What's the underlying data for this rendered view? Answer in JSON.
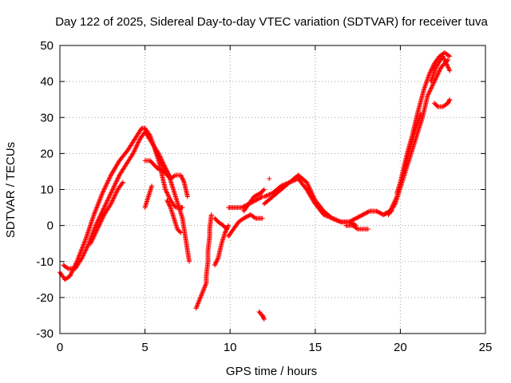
{
  "chart_data": {
    "type": "scatter",
    "title": "Day 122 of 2025, Sidereal Day-to-day VTEC variation (SDTVAR) for receiver tuva",
    "xlabel": "GPS time / hours",
    "ylabel": "SDTVAR / TECUs",
    "xlim": [
      0,
      25
    ],
    "ylim": [
      -30,
      50
    ],
    "grid": true,
    "xticks": [
      0,
      5,
      10,
      15,
      20,
      25
    ],
    "xtick_labels": [
      "0",
      "5",
      "10",
      "15",
      "20",
      "25"
    ],
    "yticks": [
      -30,
      -20,
      -10,
      0,
      10,
      20,
      30,
      40,
      50
    ],
    "ytick_labels": [
      "-30",
      "-20",
      "-10",
      "0",
      "10",
      "20",
      "30",
      "40",
      "50"
    ],
    "marker": "+",
    "series": [
      {
        "name": "track-a",
        "color": "#ff0000",
        "x": [
          0.0,
          0.3,
          0.6,
          1.0,
          1.5,
          2.0,
          2.5,
          3.0,
          3.5,
          4.0,
          4.4,
          4.8,
          5.0,
          5.3,
          5.6,
          6.0,
          6.4,
          6.8,
          7.0,
          7.2,
          7.4,
          7.6
        ],
        "y": [
          -13,
          -15,
          -14,
          -10,
          -4,
          3,
          9,
          14,
          18,
          21,
          24,
          27,
          27,
          25,
          21,
          17,
          14,
          8,
          5,
          2,
          -4,
          -10
        ]
      },
      {
        "name": "track-b",
        "color": "#ff0000",
        "x": [
          0.2,
          0.5,
          0.9,
          1.3,
          1.7,
          2.1,
          2.6,
          3.1,
          3.5,
          3.9,
          4.3,
          4.7,
          5.0,
          5.4,
          5.8,
          6.2,
          6.5
        ],
        "y": [
          -11,
          -12,
          -12,
          -9,
          -5,
          0,
          5,
          10,
          14,
          17,
          20,
          24,
          26,
          23,
          20,
          16,
          13
        ]
      },
      {
        "name": "track-c",
        "color": "#ff0000",
        "x": [
          1.8,
          2.2,
          2.6,
          3.0,
          3.4,
          3.7
        ],
        "y": [
          -5,
          -1,
          3,
          6,
          10,
          12
        ]
      },
      {
        "name": "track-d",
        "color": "#ff0000",
        "x": [
          5.0,
          5.3,
          5.7,
          6.1,
          6.5,
          6.8,
          7.1,
          7.3,
          7.5
        ],
        "y": [
          18,
          18,
          16,
          15,
          13,
          14,
          14,
          12,
          8
        ]
      },
      {
        "name": "track-e",
        "color": "#ff0000",
        "x": [
          5.6,
          5.8,
          6.0,
          6.2,
          6.5,
          6.8,
          7.1,
          7.2
        ],
        "y": [
          21,
          18,
          14,
          10,
          7,
          5,
          5,
          5
        ]
      },
      {
        "name": "track-f",
        "color": "#ff0000",
        "x": [
          5.0,
          5.2,
          5.4
        ],
        "y": [
          5,
          8,
          11
        ]
      },
      {
        "name": "track-g",
        "color": "#ff0000",
        "x": [
          6.3,
          6.5,
          6.7,
          6.9,
          7.1
        ],
        "y": [
          7,
          5,
          2,
          -1,
          -2
        ]
      },
      {
        "name": "scatter-h",
        "color": "#ff0000",
        "x": [
          8.0,
          8.6,
          8.6,
          8.65,
          8.7,
          8.7,
          8.75,
          8.8,
          8.8,
          8.85,
          8.9
        ],
        "y": [
          -23,
          -16,
          -14,
          -12,
          -10,
          -7,
          -5,
          -3,
          -1,
          1,
          3
        ]
      },
      {
        "name": "track-i",
        "color": "#ff0000",
        "x": [
          9.1,
          9.3,
          9.5,
          9.7,
          9.9
        ],
        "y": [
          -11,
          -9,
          -5,
          -2,
          0
        ]
      },
      {
        "name": "track-j",
        "color": "#ff0000",
        "x": [
          9.1,
          9.3,
          9.6,
          9.8
        ],
        "y": [
          2,
          1,
          0,
          -1
        ]
      },
      {
        "name": "track-k",
        "color": "#ff0000",
        "x": [
          9.9,
          10.2,
          10.5,
          10.8,
          11.2,
          11.5,
          11.9
        ],
        "y": [
          -3,
          -1,
          1,
          2,
          3,
          2,
          2
        ]
      },
      {
        "name": "track-l",
        "color": "#ff0000",
        "x": [
          9.9,
          10.3,
          10.7,
          11.1,
          11.5,
          11.9
        ],
        "y": [
          5,
          5,
          5,
          6,
          7,
          8
        ]
      },
      {
        "name": "track-m",
        "color": "#ff0000",
        "x": [
          10.8,
          11.1,
          11.4,
          11.8,
          12.0
        ],
        "y": [
          4,
          6,
          8,
          9,
          10
        ]
      },
      {
        "name": "track-n",
        "color": "#ff0000",
        "x": [
          11.7,
          11.9,
          12.0
        ],
        "y": [
          -24,
          -25,
          -26
        ]
      },
      {
        "name": "track-o",
        "color": "#ff0000",
        "x": [
          12.3
        ],
        "y": [
          13
        ]
      },
      {
        "name": "track-p",
        "color": "#ff0000",
        "x": [
          12.0,
          12.5,
          13.0,
          13.5,
          14.0,
          14.5,
          15.0,
          15.5,
          16.0,
          16.5,
          17.0,
          17.4,
          17.8,
          18.2,
          18.6,
          19.0,
          19.5
        ],
        "y": [
          6,
          8,
          10,
          12,
          13,
          10,
          6,
          3,
          2,
          1,
          1,
          2,
          3,
          4,
          4,
          3,
          4
        ]
      },
      {
        "name": "track-q",
        "color": "#ff0000",
        "x": [
          12.0,
          12.5,
          13.0,
          13.5,
          14.0,
          14.5,
          15.0,
          15.5,
          16.0,
          16.5,
          17.0,
          17.4
        ],
        "y": [
          8,
          9,
          11,
          12,
          14,
          12,
          7,
          4,
          2,
          1,
          1,
          0
        ]
      },
      {
        "name": "track-r",
        "color": "#ff0000",
        "x": [
          16.8,
          17.2,
          17.5,
          17.8,
          18.1
        ],
        "y": [
          0,
          0,
          -1,
          -1,
          -1
        ]
      },
      {
        "name": "track-s",
        "color": "#ff0000",
        "x": [
          19.0,
          19.4,
          19.8,
          20.1,
          20.4,
          20.7,
          21.0,
          21.4,
          21.7,
          22.0,
          22.3,
          22.6,
          22.9
        ],
        "y": [
          3,
          4,
          8,
          14,
          20,
          25,
          31,
          38,
          42,
          45,
          47,
          48,
          47
        ]
      },
      {
        "name": "track-t",
        "color": "#ff0000",
        "x": [
          19.3,
          19.7,
          20.1,
          20.5,
          20.9,
          21.3,
          21.6,
          22.0,
          22.4,
          22.8
        ],
        "y": [
          3,
          6,
          12,
          18,
          24,
          30,
          36,
          40,
          44,
          46
        ]
      },
      {
        "name": "track-u",
        "color": "#ff0000",
        "x": [
          19.8,
          20.2,
          20.6,
          20.9,
          21.2
        ],
        "y": [
          9,
          15,
          22,
          27,
          31
        ]
      },
      {
        "name": "track-v",
        "color": "#ff0000",
        "x": [
          22.0,
          22.2,
          22.5,
          22.8,
          22.9
        ],
        "y": [
          34,
          33,
          33,
          34,
          35
        ]
      },
      {
        "name": "track-w",
        "color": "#ff0000",
        "x": [
          21.8,
          22.1,
          22.5,
          22.9
        ],
        "y": [
          40,
          44,
          47,
          43
        ]
      }
    ]
  }
}
